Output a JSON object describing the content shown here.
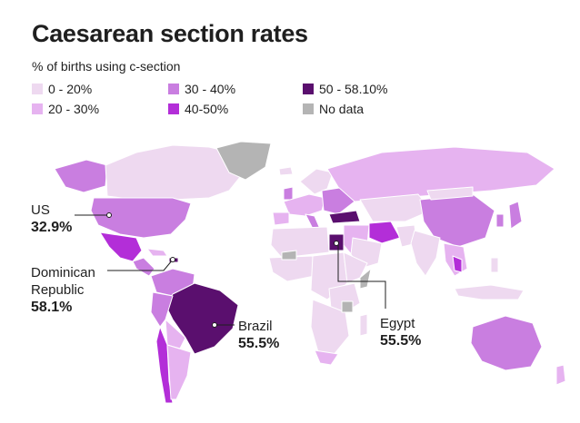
{
  "title": "Caesarean section rates",
  "subtitle": "% of births using c-section",
  "legend": [
    {
      "label": "0 - 20%",
      "color": "#eed9f0"
    },
    {
      "label": "20 - 30%",
      "color": "#e6b3f0"
    },
    {
      "label": "30 - 40%",
      "color": "#c97ee0"
    },
    {
      "label": "40-50%",
      "color": "#b32ed8"
    },
    {
      "label": "50 - 58.10%",
      "color": "#5a0f6e"
    },
    {
      "label": "No data",
      "color": "#b4b4b4"
    }
  ],
  "callouts": {
    "us": {
      "name": "US",
      "value": "32.9%"
    },
    "dominican": {
      "name1": "Dominican",
      "name2": "Republic",
      "value": "58.1%"
    },
    "brazil": {
      "name": "Brazil",
      "value": "55.5%"
    },
    "egypt": {
      "name": "Egypt",
      "value": "55.5%"
    }
  },
  "colors": {
    "light": "#eed9f0",
    "mid_light": "#e6b3f0",
    "mid": "#c97ee0",
    "strong": "#b32ed8",
    "dark": "#5a0f6e",
    "nodata": "#b4b4b4"
  }
}
